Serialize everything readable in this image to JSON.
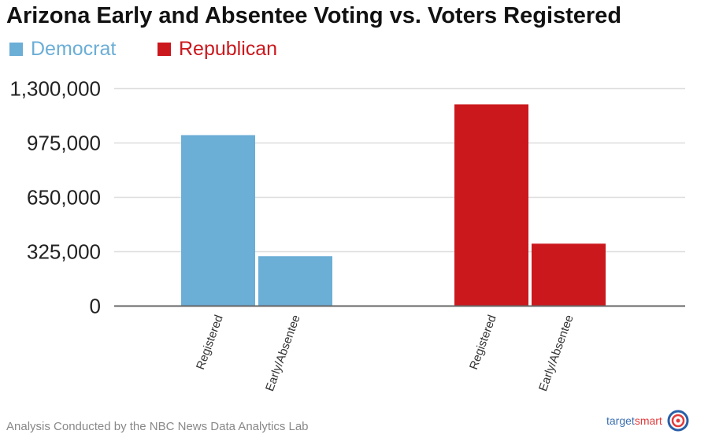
{
  "chart_data": {
    "type": "bar",
    "title": "Arizona Early and Absentee Voting vs. Voters Registered",
    "categories": [
      "Registered",
      "Early/Absentee"
    ],
    "series": [
      {
        "name": "Democrat",
        "color": "#6baed6",
        "values": [
          1022000,
          298000
        ]
      },
      {
        "name": "Republican",
        "color": "#cb181d",
        "values": [
          1206000,
          373000
        ]
      }
    ],
    "ylim": [
      0,
      1300000
    ],
    "yticks": [
      0,
      325000,
      650000,
      975000,
      1300000
    ],
    "ytick_labels": [
      "0",
      "325,000",
      "650,000",
      "975,000",
      "1,300,000"
    ],
    "grid": true,
    "legend": "top-left"
  },
  "footer": "Analysis Conducted by the NBC News Data Analytics Lab",
  "logo": {
    "part1": "target",
    "part2": "smart"
  }
}
